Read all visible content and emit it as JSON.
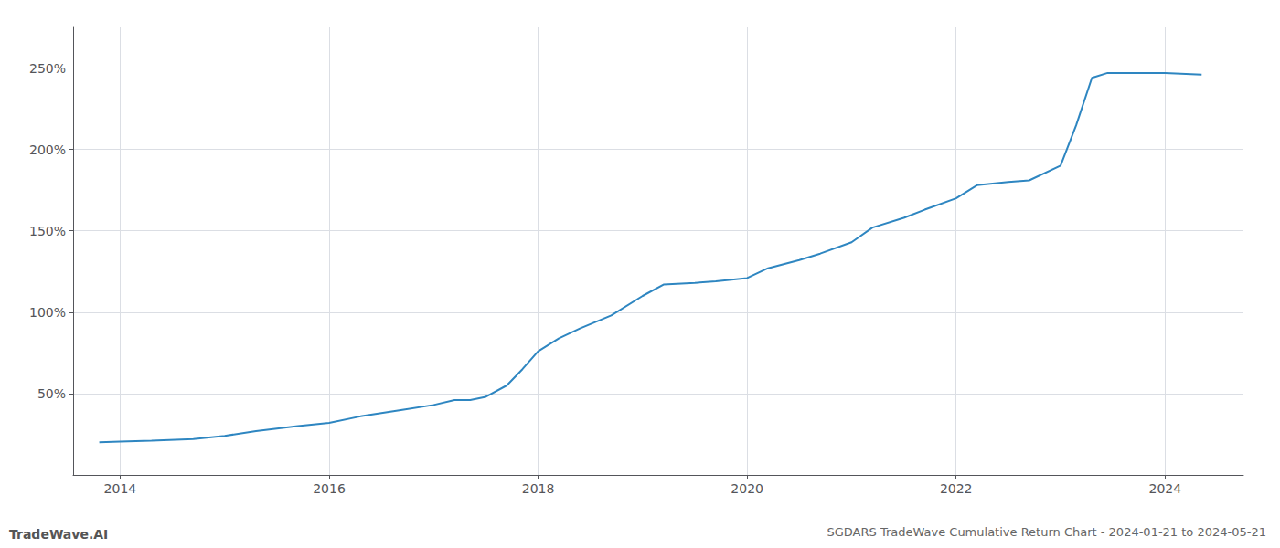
{
  "chart_data": {
    "type": "line",
    "title": "SGDARS TradeWave Cumulative Return Chart - 2024-01-21 to 2024-05-21",
    "annotations": [
      "TradeWave.AI"
    ],
    "x": [
      2013.8,
      2014.0,
      2014.3,
      2014.7,
      2015.0,
      2015.3,
      2015.7,
      2016.0,
      2016.3,
      2016.7,
      2017.0,
      2017.2,
      2017.35,
      2017.5,
      2017.7,
      2017.85,
      2018.0,
      2018.2,
      2018.4,
      2018.7,
      2019.0,
      2019.2,
      2019.5,
      2019.7,
      2020.0,
      2020.2,
      2020.5,
      2020.7,
      2021.0,
      2021.2,
      2021.5,
      2021.7,
      2022.0,
      2022.2,
      2022.5,
      2022.7,
      2023.0,
      2023.15,
      2023.3,
      2023.45,
      2023.6,
      2023.8,
      2024.0,
      2024.35
    ],
    "values": [
      20,
      20.5,
      21,
      22,
      24,
      27,
      30,
      32,
      36,
      40,
      43,
      46,
      46,
      48,
      55,
      65,
      76,
      84,
      90,
      98,
      110,
      117,
      118,
      119,
      121,
      127,
      132,
      136,
      143,
      152,
      158,
      163,
      170,
      178,
      180,
      181,
      190,
      215,
      244,
      247,
      247,
      247,
      247,
      246
    ],
    "color": "#2e86c1",
    "xlim": [
      2013.55,
      2024.75
    ],
    "xticks": [
      2014,
      2016,
      2018,
      2020,
      2022,
      2024
    ],
    "ylim": [
      0,
      275
    ],
    "yticks": [
      {
        "value": 50,
        "label": "50%"
      },
      {
        "value": 100,
        "label": "100%"
      },
      {
        "value": 150,
        "label": "150%"
      },
      {
        "value": 200,
        "label": "200%"
      },
      {
        "value": 250,
        "label": "250%"
      }
    ],
    "grid": true
  }
}
